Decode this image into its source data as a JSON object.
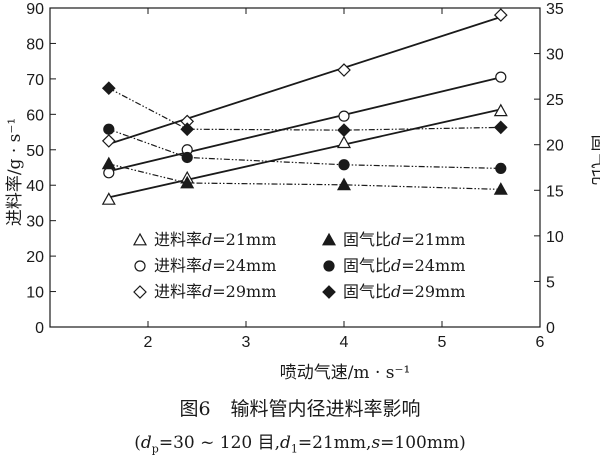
{
  "chart_data": {
    "type": "line",
    "figure_label": "图6",
    "title": "输料管内径进料率影响",
    "subtitle_parts": {
      "open": "(",
      "dp_label": "d",
      "dp_sub": "p",
      "dp_value": "=30 ~ 120 目,",
      "d1_label": "d",
      "d1_sub": "1",
      "d1_value": "=21mm,",
      "s_label": "s",
      "s_value": "=100mm)"
    },
    "xlabel": "喷动气速/m · s⁻¹",
    "ylabel_left": "进料率/g · s⁻¹",
    "ylabel_right": "固气比",
    "xlim": [
      1,
      6
    ],
    "ylim_left": [
      0,
      90
    ],
    "ylim_right": [
      0,
      35
    ],
    "x_ticks": [
      2,
      3,
      4,
      5,
      6
    ],
    "y_left_ticks": [
      0,
      10,
      20,
      30,
      40,
      50,
      60,
      70,
      80,
      90
    ],
    "y_right_ticks": [
      0,
      5,
      10,
      15,
      20,
      25,
      30,
      35
    ],
    "x_tick_labels": [
      "2",
      "3",
      "4",
      "5",
      "6"
    ],
    "y_left_tick_labels": [
      "0",
      "10",
      "20",
      "30",
      "40",
      "50",
      "60",
      "70",
      "80",
      "90"
    ],
    "y_right_tick_labels": [
      "0",
      "5",
      "10",
      "15",
      "20",
      "25",
      "30",
      "35"
    ],
    "x": [
      1.6,
      2.4,
      4.0,
      5.6
    ],
    "series": [
      {
        "name": "进料率d=21mm",
        "prefix": "进料率",
        "var": "d",
        "suffix": "=21mm",
        "axis": "left",
        "marker": "triangle-open",
        "line": "solid",
        "values": [
          36,
          42,
          52,
          61
        ]
      },
      {
        "name": "进料率d=24mm",
        "prefix": "进料率",
        "var": "d",
        "suffix": "=24mm",
        "axis": "left",
        "marker": "circle-open",
        "line": "solid",
        "values": [
          43.5,
          50,
          59.5,
          70.5
        ]
      },
      {
        "name": "进料率d=29mm",
        "prefix": "进料率",
        "var": "d",
        "suffix": "=29mm",
        "axis": "left",
        "marker": "diamond-open",
        "line": "solid",
        "values": [
          52.5,
          58,
          72.5,
          88
        ]
      },
      {
        "name": "固气比d=21mm",
        "prefix": "固气比",
        "var": "d",
        "suffix": "=21mm",
        "axis": "right",
        "marker": "triangle-filled",
        "line": "dashdot",
        "values": [
          17.9,
          15.8,
          15.6,
          15.1
        ]
      },
      {
        "name": "固气比d=24mm",
        "prefix": "固气比",
        "var": "d",
        "suffix": "=24mm",
        "axis": "right",
        "marker": "circle-filled",
        "line": "dashdot",
        "values": [
          21.7,
          18.6,
          17.8,
          17.4
        ]
      },
      {
        "name": "固气比d=29mm",
        "prefix": "固气比",
        "var": "d",
        "suffix": "=29mm",
        "axis": "right",
        "marker": "diamond-filled",
        "line": "dashdot",
        "values": [
          26.2,
          21.7,
          21.6,
          21.9
        ]
      }
    ],
    "legend_location": "lower-center, two columns",
    "grid": false
  }
}
